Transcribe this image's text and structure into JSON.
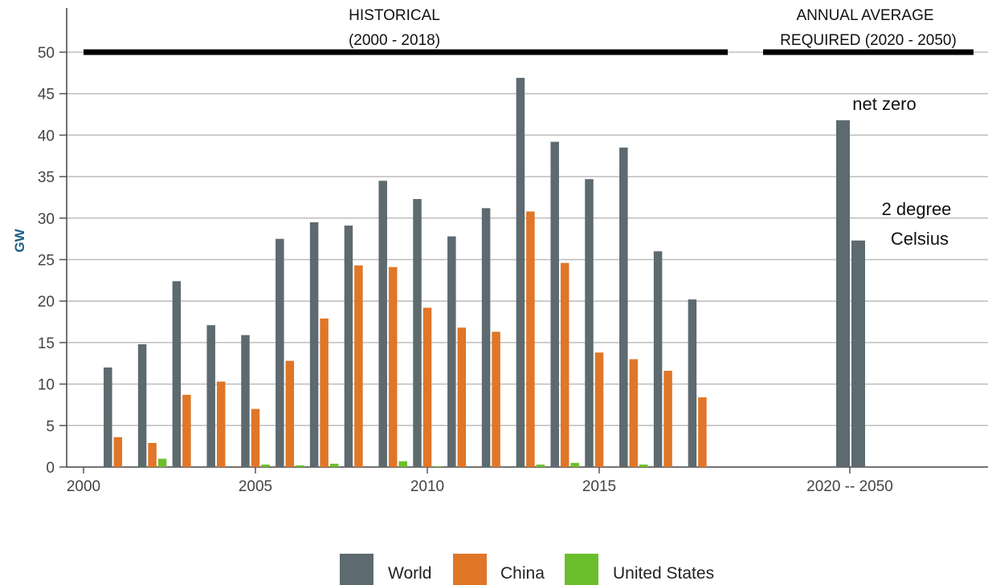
{
  "chart_data": {
    "type": "bar",
    "ylabel": "GW",
    "ylim": [
      0,
      50
    ],
    "yticks": [
      "0",
      "5",
      "10",
      "15",
      "20",
      "25",
      "30",
      "35",
      "40",
      "45",
      "50"
    ],
    "x_tick_labels": [
      "2000",
      "2005",
      "2010",
      "2015",
      "2020 -- 2050"
    ],
    "grid": true,
    "legend_position": "bottom",
    "historical": {
      "categories": [
        "2001",
        "2002",
        "2003",
        "2004",
        "2005",
        "2006",
        "2007",
        "2008",
        "2009",
        "2010",
        "2011",
        "2012",
        "2013",
        "2014",
        "2015",
        "2016",
        "2017",
        "2018"
      ],
      "series": [
        {
          "name": "World",
          "color": "#5d6a70",
          "values": [
            12.0,
            14.8,
            22.4,
            17.1,
            15.9,
            27.5,
            29.5,
            29.1,
            34.5,
            32.3,
            27.8,
            31.2,
            46.9,
            39.2,
            34.7,
            38.5,
            26.0,
            20.2
          ]
        },
        {
          "name": "China",
          "color": "#e07628",
          "values": [
            3.6,
            2.9,
            8.7,
            10.3,
            7.0,
            12.8,
            17.9,
            24.3,
            24.1,
            19.2,
            16.8,
            16.3,
            30.8,
            24.6,
            13.8,
            13.0,
            11.6,
            8.4
          ]
        },
        {
          "name": "United States",
          "color": "#6cbf2c",
          "values": [
            0.0,
            1.0,
            0.0,
            0.0,
            0.3,
            0.2,
            0.4,
            0.0,
            0.7,
            0.1,
            0.0,
            0.0,
            0.3,
            0.5,
            0.0,
            0.3,
            0.0,
            0.0
          ]
        }
      ]
    },
    "required": {
      "category": "2020 -- 2050",
      "bars": [
        {
          "series": "World",
          "scenario": "net zero",
          "value": 41.8
        },
        {
          "series": "World",
          "scenario": "2 degree Celsius",
          "value": 27.3
        }
      ]
    },
    "annotations": {
      "historical_line1": "HISTORICAL",
      "historical_line2": "(2000 - 2018)",
      "required_line1": "ANNUAL AVERAGE",
      "required_line2": "REQUIRED (2020 - 2050)",
      "net_zero": "net zero",
      "two_degree_line1": "2 degree",
      "two_degree_line2": "Celsius"
    },
    "legend": [
      {
        "name": "World",
        "color": "#5d6a70"
      },
      {
        "name": "China",
        "color": "#e07628"
      },
      {
        "name": "United States",
        "color": "#6cbf2c"
      }
    ]
  }
}
